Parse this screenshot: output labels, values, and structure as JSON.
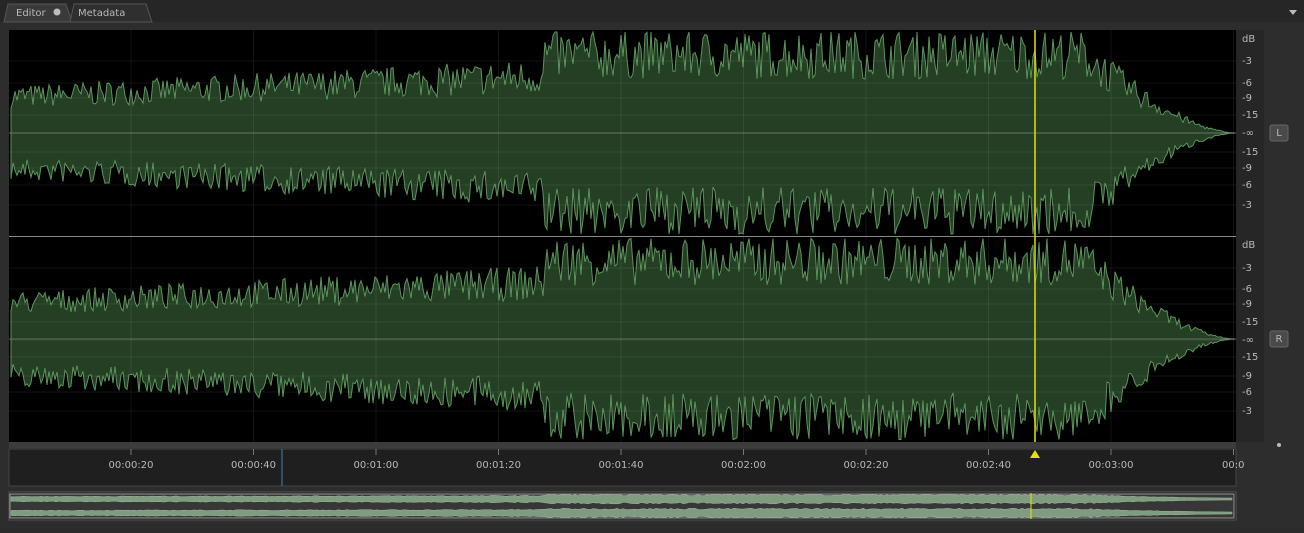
{
  "tabs": [
    {
      "label": "Editor"
    },
    {
      "label": "Metadata"
    }
  ],
  "channels": [
    {
      "button": "L",
      "db_labels": [
        "dB",
        "-3",
        "-6",
        "-9",
        "-15",
        "-∞",
        "-15",
        "-9",
        "-6",
        "-3"
      ]
    },
    {
      "button": "R",
      "db_labels": [
        "dB",
        "-3",
        "-6",
        "-9",
        "-15",
        "-∞",
        "-15",
        "-9",
        "-6",
        "-3"
      ]
    }
  ],
  "timeline": {
    "labels": [
      "00:00:20",
      "00:00:40",
      "00:01:00",
      "00:01:20",
      "00:01:40",
      "00:02:00",
      "00:02:20",
      "00:02:40",
      "00:03:00",
      "00:0"
    ]
  }
}
